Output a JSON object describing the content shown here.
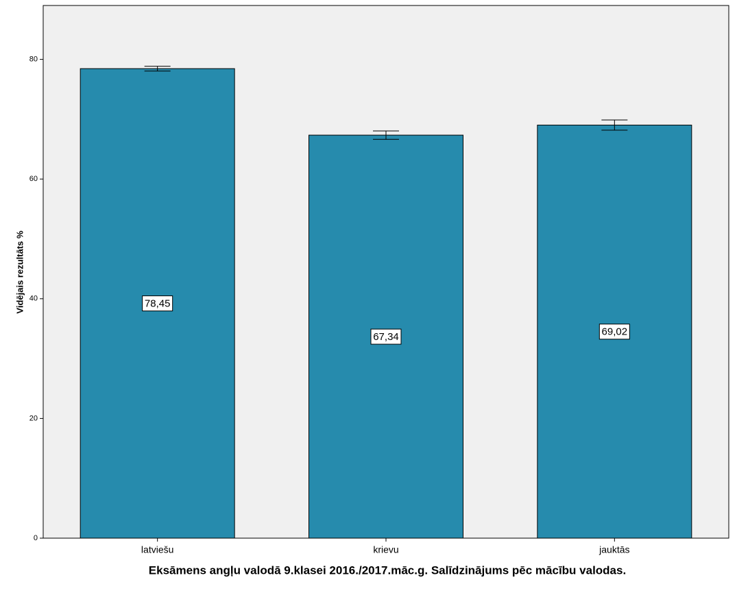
{
  "chart_data": {
    "type": "bar",
    "y_label": "Vidējais rezultāts %",
    "x_label": "Eksāmens angļu valodā 9.klasei 2016./2017.māc.g. Salīdzinājums pēc mācību valodas.",
    "categories": [
      "latviešu",
      "krievu",
      "jauktās"
    ],
    "values": [
      78.45,
      67.34,
      69.02
    ],
    "value_labels": [
      "78,45",
      "67,34",
      "69,02"
    ],
    "errors": [
      0.4,
      0.7,
      0.85
    ],
    "color": "#268bad",
    "ylim": [
      0,
      89
    ],
    "yticks": [
      0,
      20,
      40,
      60,
      80
    ]
  }
}
